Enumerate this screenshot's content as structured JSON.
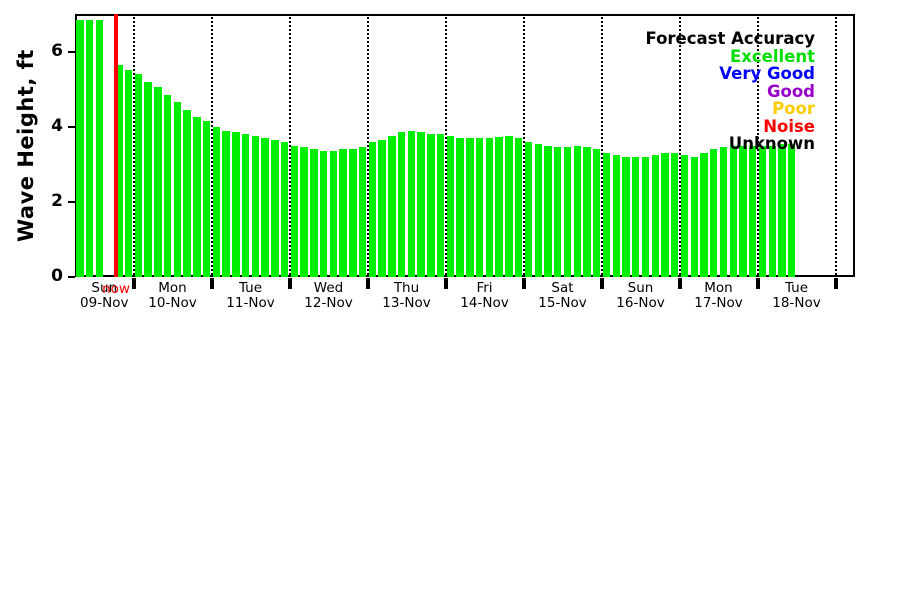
{
  "chart_data": {
    "type": "bar",
    "title": "",
    "xlabel": "",
    "ylabel": "Wave Height, ft",
    "ylim": [
      0,
      7
    ],
    "yticks": [
      0,
      2,
      4,
      6
    ],
    "grid": "vertical-dotted-day-separators",
    "bar_color": "#00ee00",
    "axis_color": "#000000",
    "now_marker": {
      "label": "now",
      "color": "#ff0000",
      "slot": 4
    },
    "slots_per_day": 8,
    "first_day_slots": 6,
    "days": [
      {
        "day": "Sun",
        "date": "09-Nov"
      },
      {
        "day": "Mon",
        "date": "10-Nov"
      },
      {
        "day": "Tue",
        "date": "11-Nov"
      },
      {
        "day": "Wed",
        "date": "12-Nov"
      },
      {
        "day": "Thu",
        "date": "13-Nov"
      },
      {
        "day": "Fri",
        "date": "14-Nov"
      },
      {
        "day": "Sat",
        "date": "15-Nov"
      },
      {
        "day": "Sun",
        "date": "16-Nov"
      },
      {
        "day": "Mon",
        "date": "17-Nov"
      },
      {
        "day": "Tue",
        "date": "18-Nov"
      }
    ],
    "values_ft": [
      6.85,
      6.85,
      6.85,
      null,
      5.65,
      5.5,
      5.4,
      5.2,
      5.05,
      4.85,
      4.65,
      4.45,
      4.25,
      4.15,
      4.0,
      3.9,
      3.85,
      3.8,
      3.75,
      3.7,
      3.65,
      3.6,
      3.5,
      3.45,
      3.4,
      3.35,
      3.35,
      3.4,
      3.4,
      3.45,
      3.6,
      3.65,
      3.75,
      3.85,
      3.9,
      3.85,
      3.8,
      3.8,
      3.75,
      3.7,
      3.7,
      3.7,
      3.7,
      3.72,
      3.75,
      3.7,
      3.6,
      3.55,
      3.5,
      3.45,
      3.45,
      3.5,
      3.45,
      3.4,
      3.3,
      3.25,
      3.2,
      3.2,
      3.2,
      3.25,
      3.3,
      3.3,
      3.25,
      3.2,
      3.3,
      3.4,
      3.45,
      3.5,
      3.5,
      3.5,
      3.5,
      3.5,
      3.55,
      3.55
    ],
    "legend": {
      "title": "Forecast Accuracy",
      "position": "top-right",
      "items": [
        {
          "label": "Excellent",
          "color": "#00dd00"
        },
        {
          "label": "Very Good",
          "color": "#0000ff"
        },
        {
          "label": "Good",
          "color": "#9900cc"
        },
        {
          "label": "Poor",
          "color": "#ffcc00"
        },
        {
          "label": "Noise",
          "color": "#ff0000"
        },
        {
          "label": "Unknown",
          "color": "#000000"
        }
      ]
    }
  }
}
